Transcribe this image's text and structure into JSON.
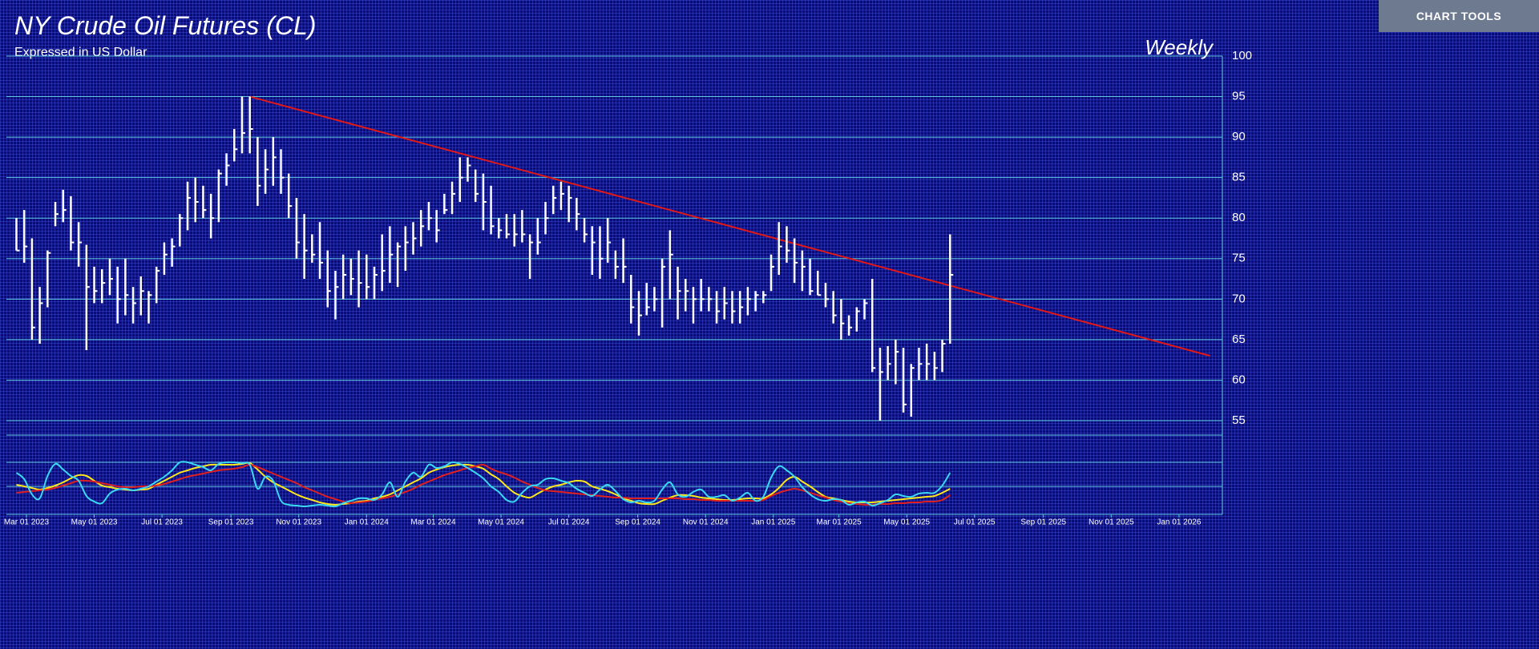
{
  "toolbar": {
    "button": "CHART TOOLS"
  },
  "chart_data": [
    {
      "type": "ohlc",
      "title": "NY Crude Oil Futures (CL)",
      "subtitle": "Expressed in US Dollar",
      "annotation": "Weekly",
      "color": "#ffffff",
      "x": [
        "2023-02-20",
        "2023-02-27",
        "2023-03-06",
        "2023-03-13",
        "2023-03-20",
        "2023-03-27",
        "2023-04-03",
        "2023-04-10",
        "2023-04-17",
        "2023-04-24",
        "2023-05-01",
        "2023-05-08",
        "2023-05-15",
        "2023-05-22",
        "2023-05-29",
        "2023-06-05",
        "2023-06-12",
        "2023-06-19",
        "2023-06-26",
        "2023-07-03",
        "2023-07-10",
        "2023-07-17",
        "2023-07-24",
        "2023-07-31",
        "2023-08-07",
        "2023-08-14",
        "2023-08-21",
        "2023-08-28",
        "2023-09-04",
        "2023-09-11",
        "2023-09-18",
        "2023-09-25",
        "2023-10-02",
        "2023-10-09",
        "2023-10-16",
        "2023-10-23",
        "2023-10-30",
        "2023-11-06",
        "2023-11-13",
        "2023-11-20",
        "2023-11-27",
        "2023-12-04",
        "2023-12-11",
        "2023-12-18",
        "2023-12-25",
        "2024-01-01",
        "2024-01-08",
        "2024-01-15",
        "2024-01-22",
        "2024-01-29",
        "2024-02-05",
        "2024-02-12",
        "2024-02-19",
        "2024-02-26",
        "2024-03-04",
        "2024-03-11",
        "2024-03-18",
        "2024-03-25",
        "2024-04-01",
        "2024-04-08",
        "2024-04-15",
        "2024-04-22",
        "2024-04-29",
        "2024-05-06",
        "2024-05-13",
        "2024-05-20",
        "2024-05-27",
        "2024-06-03",
        "2024-06-10",
        "2024-06-17",
        "2024-06-24",
        "2024-07-01",
        "2024-07-08",
        "2024-07-15",
        "2024-07-22",
        "2024-07-29",
        "2024-08-05",
        "2024-08-12",
        "2024-08-19",
        "2024-08-26",
        "2024-09-02",
        "2024-09-09",
        "2024-09-16",
        "2024-09-23",
        "2024-09-30",
        "2024-10-07",
        "2024-10-14",
        "2024-10-21",
        "2024-10-28",
        "2024-11-04",
        "2024-11-11",
        "2024-11-18",
        "2024-11-25",
        "2024-12-02",
        "2024-12-09",
        "2024-12-16",
        "2024-12-23",
        "2024-12-30",
        "2025-01-06",
        "2025-01-13",
        "2025-01-20",
        "2025-01-27",
        "2025-02-03",
        "2025-02-10",
        "2025-02-17",
        "2025-02-24",
        "2025-03-03",
        "2025-03-10",
        "2025-03-17",
        "2025-03-24",
        "2025-03-31",
        "2025-04-07",
        "2025-04-14",
        "2025-04-21",
        "2025-04-28",
        "2025-05-05",
        "2025-05-12",
        "2025-05-19",
        "2025-05-26",
        "2025-06-02",
        "2025-06-09"
      ],
      "high": [
        80,
        81,
        77.5,
        71.5,
        76,
        82,
        83.5,
        82.7,
        79.5,
        76.7,
        74,
        73.7,
        75,
        74,
        75,
        71.5,
        72.8,
        71,
        74,
        77,
        77.5,
        80.5,
        84.5,
        85,
        84,
        83,
        86,
        88,
        91,
        95,
        95,
        90,
        88.5,
        90,
        88.5,
        85.5,
        82.5,
        80.5,
        78,
        79.5,
        76,
        73.5,
        75.5,
        75,
        76,
        75.5,
        74,
        78,
        79,
        77,
        79,
        79.5,
        81,
        82,
        81,
        83,
        84.5,
        87.5,
        87.5,
        86,
        85.5,
        84,
        80,
        80.5,
        80.5,
        81,
        78,
        80,
        82,
        84,
        84.5,
        84,
        82.5,
        80,
        79,
        79,
        80,
        76,
        77.5,
        73,
        71,
        72,
        71.5,
        75,
        78.5,
        74,
        72.5,
        71.5,
        72.5,
        71.5,
        71,
        71.5,
        71,
        71,
        71.5,
        71,
        71,
        75.5,
        79.5,
        79,
        77.5,
        76,
        75,
        73.5,
        72,
        71,
        70,
        68,
        69,
        70,
        72.5,
        64,
        64.2,
        65,
        64,
        62,
        64,
        64.5,
        63.5,
        65,
        78
      ],
      "low": [
        76,
        74.5,
        65,
        64.5,
        69,
        79,
        79.5,
        76,
        74,
        63.7,
        69.5,
        69.5,
        70.5,
        67,
        68,
        67,
        68,
        67,
        69.5,
        73,
        74,
        76.5,
        78.5,
        79.5,
        80,
        77.5,
        79.5,
        84,
        87,
        88,
        88,
        81.5,
        83,
        84,
        83,
        80,
        75,
        72.5,
        74.5,
        72.5,
        69,
        67.5,
        70,
        70.5,
        69,
        70,
        70,
        71,
        72,
        71.5,
        73.5,
        75.5,
        76.5,
        78.5,
        77,
        80.5,
        80.5,
        82,
        84.5,
        82,
        78.5,
        78,
        77.5,
        77.5,
        76.5,
        77,
        72.5,
        75.5,
        78,
        80.5,
        81,
        79.5,
        78.5,
        77,
        73,
        72.5,
        74.5,
        72.5,
        72,
        67,
        65.5,
        68,
        68.5,
        66.5,
        70,
        67.5,
        68.5,
        67,
        68.5,
        68.5,
        67,
        67.5,
        67,
        67,
        68,
        68.5,
        69.5,
        71,
        73,
        74.5,
        72,
        71,
        70.5,
        70.5,
        69,
        67,
        65,
        65.5,
        66,
        67.5,
        61,
        55,
        60,
        59.5,
        56,
        55.5,
        60,
        60,
        60,
        61,
        64.5
      ],
      "close": [
        76,
        76.5,
        66.5,
        69.5,
        75.7,
        80.5,
        81,
        77,
        77,
        71.5,
        71,
        72,
        72.5,
        70,
        70.5,
        69.5,
        71,
        70.5,
        73.5,
        75.5,
        76.5,
        80,
        82.5,
        82,
        81,
        80,
        85.5,
        86.5,
        88.5,
        90.5,
        91,
        84,
        86,
        87.5,
        85,
        81.5,
        77,
        76,
        75.5,
        74.5,
        71,
        71.5,
        73,
        72.5,
        72,
        71.5,
        73,
        73.5,
        75.5,
        76.5,
        77,
        77.5,
        79,
        80,
        78.5,
        81,
        83,
        85,
        86.5,
        83,
        82,
        79,
        78.5,
        78,
        78,
        78,
        77,
        77,
        80,
        82.5,
        83,
        82.5,
        80.5,
        78,
        77,
        75,
        77,
        74,
        74,
        69,
        68,
        69,
        70,
        74,
        75.5,
        71,
        71,
        70,
        70,
        70,
        68.5,
        69.5,
        68.5,
        69,
        70,
        70.5,
        70.5,
        74,
        76.5,
        76,
        74.5,
        74,
        71,
        70.5,
        70,
        68,
        67,
        66.5,
        68.5,
        69.5,
        61.5,
        61,
        62,
        63.5,
        57,
        61.5,
        62,
        62,
        61.5,
        64.5,
        73
      ],
      "ylim": [
        55,
        100
      ],
      "yticks": [
        55,
        60,
        65,
        70,
        75,
        80,
        85,
        90,
        95,
        100
      ],
      "grid": true,
      "xlim": [
        "2023-02-11",
        "2026-02-09"
      ],
      "xticks": [
        {
          "value": "2023-03-01",
          "label": "Mar 01 2023"
        },
        {
          "value": "2023-05-01",
          "label": "May 01 2023"
        },
        {
          "value": "2023-07-01",
          "label": "Jul 01 2023"
        },
        {
          "value": "2023-09-01",
          "label": "Sep 01 2023"
        },
        {
          "value": "2023-11-01",
          "label": "Nov 01 2023"
        },
        {
          "value": "2024-01-01",
          "label": "Jan 01 2024"
        },
        {
          "value": "2024-03-01",
          "label": "Mar 01 2024"
        },
        {
          "value": "2024-05-01",
          "label": "May 01 2024"
        },
        {
          "value": "2024-07-01",
          "label": "Jul 01 2024"
        },
        {
          "value": "2024-09-01",
          "label": "Sep 01 2024"
        },
        {
          "value": "2024-11-01",
          "label": "Nov 01 2024"
        },
        {
          "value": "2025-01-01",
          "label": "Jan 01 2025"
        },
        {
          "value": "2025-03-01",
          "label": "Mar 01 2025"
        },
        {
          "value": "2025-05-01",
          "label": "May 01 2025"
        },
        {
          "value": "2025-07-01",
          "label": "Jul 01 2025"
        },
        {
          "value": "2025-09-01",
          "label": "Sep 01 2025"
        },
        {
          "value": "2025-11-01",
          "label": "Nov 01 2025"
        },
        {
          "value": "2026-01-01",
          "label": "Jan 01 2026"
        }
      ],
      "trendline": {
        "x": [
          "2023-09-18",
          "2026-01-29"
        ],
        "values": [
          95,
          63
        ],
        "color": "#e01818"
      }
    },
    {
      "type": "line",
      "ylim": [
        15,
        110
      ],
      "yticks": [
        50,
        80
      ],
      "grid": true,
      "series": [
        {
          "color": "#ffe81a",
          "values": [
            52,
            50,
            48,
            46,
            48,
            51,
            55,
            60,
            64,
            63,
            57,
            51,
            49,
            47,
            46,
            45,
            46,
            47,
            52,
            57,
            62,
            67,
            70,
            73,
            75,
            77,
            77,
            77,
            77,
            78,
            79,
            71,
            62,
            55,
            50,
            45,
            40,
            36,
            33,
            30,
            28,
            27,
            28,
            29,
            31,
            32,
            35,
            37,
            40,
            45,
            50,
            55,
            60,
            67,
            71,
            74,
            76,
            77,
            77,
            75,
            72,
            65,
            59,
            50,
            42,
            38,
            36,
            41,
            46,
            50,
            52,
            55,
            57,
            56,
            50,
            47,
            44,
            40,
            35,
            32,
            29,
            28,
            28,
            32,
            36,
            39,
            39,
            38,
            36,
            35,
            34,
            33,
            33,
            34,
            35,
            35,
            35,
            40,
            48,
            58,
            62,
            56,
            50,
            43,
            37,
            35,
            33,
            31,
            30,
            30,
            30,
            31,
            32,
            33,
            34,
            35,
            36,
            37,
            38,
            42,
            47
          ]
        },
        {
          "color": "#e02020",
          "values": [
            42,
            43,
            44,
            45,
            46,
            48,
            51,
            54,
            57,
            57,
            56,
            54,
            52,
            50,
            49,
            49,
            50,
            50,
            51,
            53,
            56,
            59,
            62,
            64,
            66,
            68,
            70,
            71,
            72,
            74,
            77,
            74,
            70,
            66,
            62,
            58,
            54,
            49,
            45,
            41,
            37,
            34,
            31,
            29,
            30,
            31,
            33,
            35,
            37,
            40,
            43,
            47,
            52,
            56,
            60,
            64,
            67,
            70,
            73,
            75,
            77,
            72,
            68,
            65,
            61,
            56,
            52,
            48,
            45,
            44,
            43,
            42,
            41,
            40,
            39,
            38,
            37,
            36,
            36,
            35,
            35,
            35,
            35,
            35,
            35,
            35,
            34,
            34,
            33,
            33,
            32,
            32,
            32,
            32,
            32,
            32,
            33,
            38,
            42,
            45,
            47,
            45,
            42,
            39,
            36,
            33,
            31,
            29,
            28,
            27,
            27,
            28,
            28,
            29,
            29,
            30,
            30,
            31,
            31,
            33,
            39
          ]
        },
        {
          "color": "#3ad8f2",
          "values": [
            67,
            59,
            40,
            35,
            63,
            78,
            71,
            63,
            57,
            38,
            31,
            29,
            41,
            46,
            47,
            45,
            47,
            50,
            56,
            62,
            70,
            80,
            80,
            77,
            74,
            70,
            78,
            80,
            80,
            79,
            77,
            47,
            62,
            57,
            32,
            27,
            26,
            25,
            26,
            27,
            26,
            25,
            29,
            32,
            35,
            35,
            33,
            40,
            55,
            37,
            56,
            67,
            62,
            77,
            73,
            75,
            80,
            78,
            73,
            67,
            60,
            50,
            43,
            33,
            31,
            42,
            50,
            52,
            59,
            60,
            57,
            54,
            47,
            42,
            38,
            46,
            52,
            44,
            34,
            30,
            32,
            30,
            32,
            46,
            55,
            40,
            37,
            43,
            46,
            37,
            37,
            39,
            32,
            36,
            42,
            32,
            37,
            61,
            75,
            70,
            62,
            49,
            40,
            34,
            32,
            34,
            33,
            27,
            30,
            31,
            26,
            29,
            33,
            40,
            38,
            37,
            41,
            42,
            42,
            51,
            67
          ]
        }
      ]
    }
  ]
}
